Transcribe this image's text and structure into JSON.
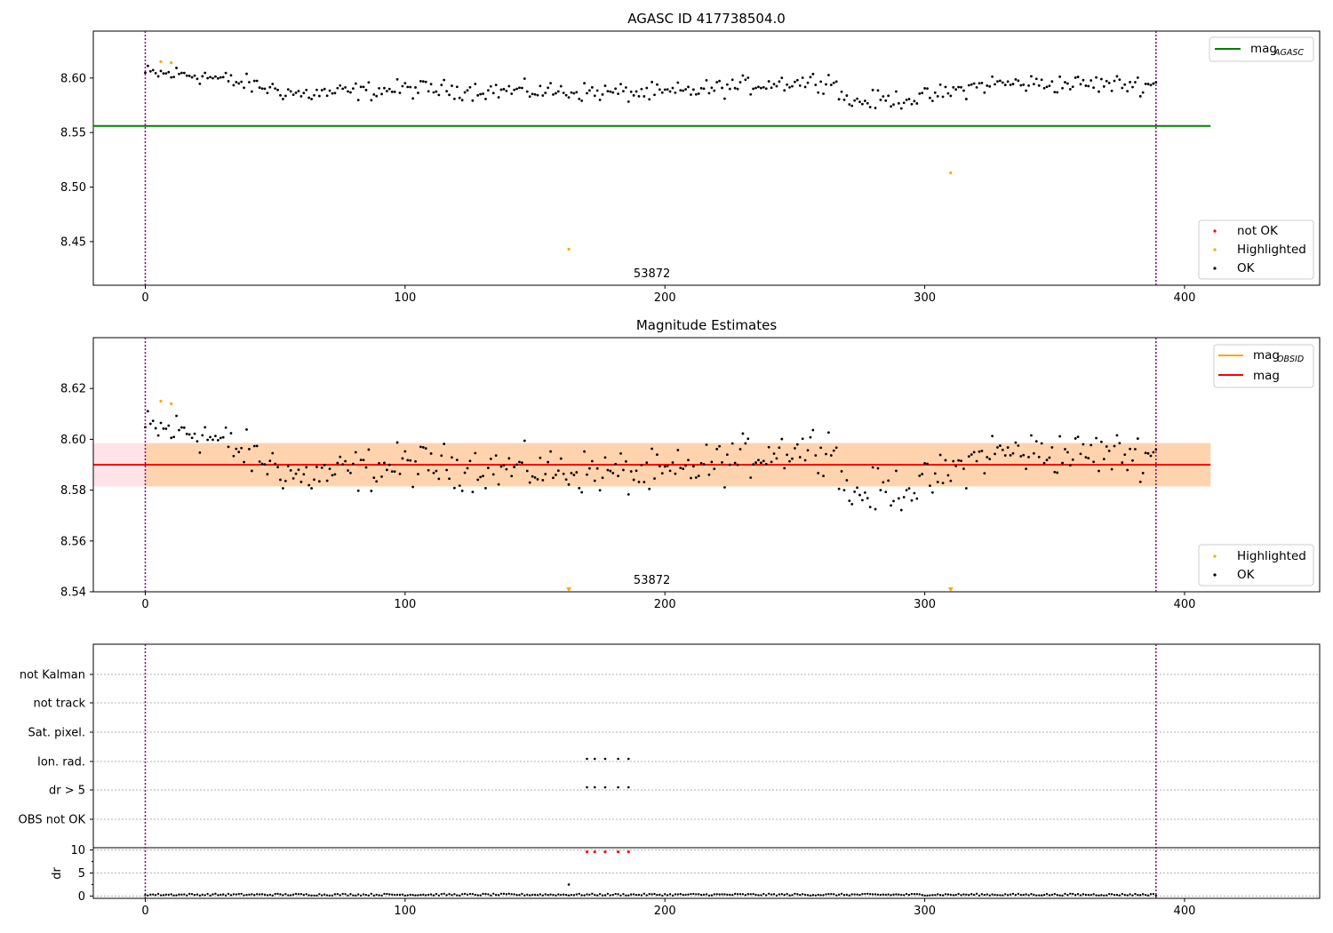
{
  "chart_data": [
    {
      "type": "scatter",
      "title": "AGASC ID 417738504.0",
      "xlim": [
        -20,
        452
      ],
      "ylim": [
        8.41,
        8.643
      ],
      "xticks": [
        0,
        100,
        200,
        300,
        400
      ],
      "yticks": [
        8.45,
        8.5,
        8.55,
        8.6
      ],
      "ytick_labels": [
        "8.45",
        "8.50",
        "8.55",
        "8.60"
      ],
      "obsid_label": "53872",
      "obsid_label_x": 195,
      "vlines": [
        0,
        389
      ],
      "mag_agasc": 8.556,
      "mag_line_range": [
        -20,
        410
      ],
      "mag_agasc_color": "#008000",
      "legend_top": [
        {
          "label": "mag",
          "sub": "AGASC",
          "color": "#008000"
        }
      ],
      "legend_bottom": [
        {
          "label": "not OK",
          "color": "#ff0000"
        },
        {
          "label": "Highlighted",
          "color": "#ffa500"
        },
        {
          "label": "OK",
          "color": "#000000"
        }
      ],
      "series": [
        {
          "name": "Highlighted",
          "color": "#ffa500",
          "points": [
            [
              6,
              8.615
            ],
            [
              10,
              8.614
            ],
            [
              163,
              8.443
            ],
            [
              310,
              8.513
            ]
          ]
        },
        {
          "name": "OK",
          "color": "#000000",
          "generator": {
            "n": 390,
            "base": 8.591,
            "trend": [
              [
                0,
                8.604
              ],
              [
                20,
                8.603
              ],
              [
                60,
                8.585
              ],
              [
                100,
                8.59
              ],
              [
                150,
                8.588
              ],
              [
                200,
                8.586
              ],
              [
                240,
                8.595
              ],
              [
                265,
                8.598
              ],
              [
                270,
                8.578
              ],
              [
                300,
                8.582
              ],
              [
                325,
                8.595
              ],
              [
                389,
                8.594
              ]
            ],
            "noise": 0.007
          }
        }
      ]
    },
    {
      "type": "scatter",
      "title": "Magnitude Estimates",
      "xlim": [
        -20,
        452
      ],
      "ylim": [
        8.54,
        8.64
      ],
      "xticks": [
        0,
        100,
        200,
        300,
        400
      ],
      "yticks": [
        8.54,
        8.56,
        8.58,
        8.6,
        8.62
      ],
      "ytick_labels": [
        "8.54",
        "8.56",
        "8.58",
        "8.60",
        "8.62"
      ],
      "obsid_label": "53872",
      "obsid_label_x": 195,
      "vlines": [
        0,
        389
      ],
      "mag": 8.59,
      "mag_band": [
        8.5815,
        8.5985
      ],
      "mag_obsid": 8.59,
      "mag_obsid_band": [
        8.5815,
        8.5985
      ],
      "band_range": [
        -20,
        410
      ],
      "obsid_band_range": [
        0,
        410
      ],
      "legend_top": [
        {
          "label": "mag",
          "sub": "OBSID",
          "color": "#ffa500"
        },
        {
          "label": "mag",
          "sub": "",
          "color": "#ff0000"
        }
      ],
      "legend_bottom": [
        {
          "label": "Highlighted",
          "color": "#ffa500"
        },
        {
          "label": "OK",
          "color": "#000000"
        }
      ],
      "series": [
        {
          "name": "Highlighted",
          "color": "#ffa500",
          "points": [
            [
              6,
              8.615
            ],
            [
              10,
              8.614
            ]
          ]
        },
        {
          "name": "Highlighted-offscale",
          "color": "#ffa500",
          "points": [
            [
              163,
              8.54
            ],
            [
              310,
              8.54
            ]
          ]
        }
      ]
    },
    {
      "type": "scatter",
      "title": "",
      "xlim": [
        -20,
        452
      ],
      "xticks": [
        0,
        100,
        200,
        300,
        400
      ],
      "vlines": [
        0,
        389
      ],
      "flag_rows": [
        "not Kalman",
        "not track",
        "Sat. pixel.",
        "Ion. rad.",
        "dr > 5",
        "OBS not OK"
      ],
      "flag_points": {
        "Ion. rad.": [
          170,
          173,
          177,
          182,
          186
        ],
        "dr > 5": [
          170,
          173,
          177,
          182,
          186
        ]
      },
      "dr": {
        "ylabel": "dr",
        "ylim": [
          -0.5,
          10.5
        ],
        "yticks": [
          0,
          5,
          10
        ],
        "ytick_labels": [
          "0",
          "5",
          "10"
        ],
        "high_points": [
          [
            170,
            9.6
          ],
          [
            173,
            9.6
          ],
          [
            177,
            9.6
          ],
          [
            182,
            9.6
          ],
          [
            186,
            9.6
          ]
        ],
        "spike": [
          163,
          2.5
        ],
        "baseline": 0.3
      }
    }
  ]
}
